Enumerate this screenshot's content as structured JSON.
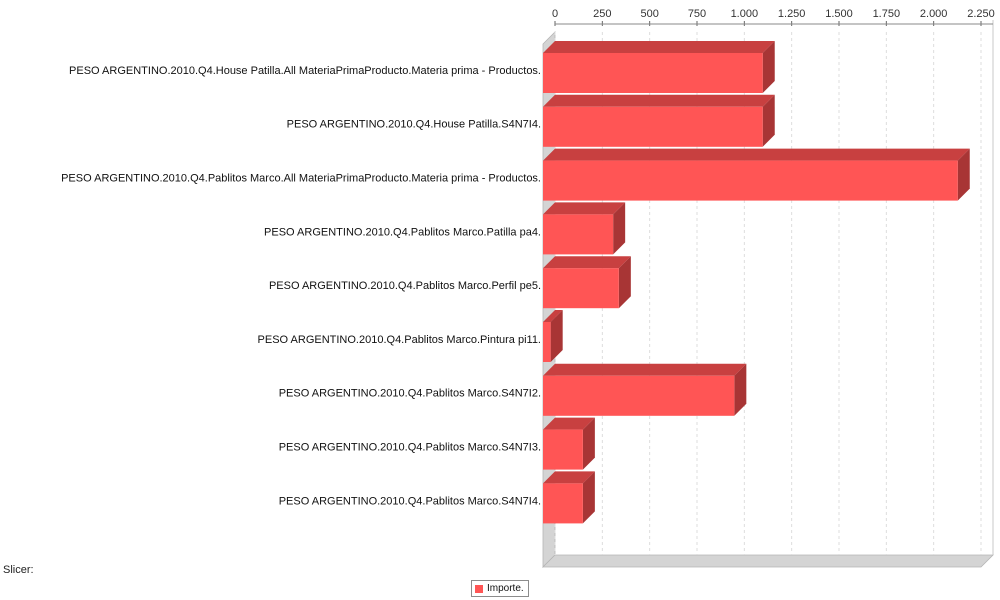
{
  "slicer_label": "Slicer:",
  "legend": {
    "label": "Importe.",
    "color": "#ff5555"
  },
  "colors": {
    "bar_front": "#ff5555",
    "bar_top": "#c84040",
    "bar_side": "#a83535",
    "wall": "#d4d4d4",
    "grid": "#dddddd"
  },
  "chart_data": {
    "type": "bar",
    "orientation": "horizontal",
    "style": "3d",
    "title": "",
    "xlabel": "",
    "ylabel": "",
    "xlim": [
      0,
      2250
    ],
    "ticks": [
      0,
      250,
      500,
      750,
      1000,
      1250,
      1500,
      1750,
      2000,
      2250
    ],
    "tick_labels": [
      "0",
      "250",
      "500",
      "750",
      "1.000",
      "1.250",
      "1.500",
      "1.750",
      "2.000",
      "2.250"
    ],
    "axis_position": "top",
    "grid": true,
    "legend_position": "bottom-center",
    "categories": [
      "PESO ARGENTINO.2010.Q4.House Patilla.All MateriaPrimaProducto.Materia prima - Productos.",
      "PESO ARGENTINO.2010.Q4.House Patilla.S4N7I4.",
      "PESO ARGENTINO.2010.Q4.Pablitos Marco.All MateriaPrimaProducto.Materia prima - Productos.",
      "PESO ARGENTINO.2010.Q4.Pablitos Marco.Patilla pa4.",
      "PESO ARGENTINO.2010.Q4.Pablitos Marco.Perfil pe5.",
      "PESO ARGENTINO.2010.Q4.Pablitos Marco.Pintura pi11.",
      "PESO ARGENTINO.2010.Q4.Pablitos Marco.S4N7I2.",
      "PESO ARGENTINO.2010.Q4.Pablitos Marco.S4N7I3.",
      "PESO ARGENTINO.2010.Q4.Pablitos Marco.S4N7I4."
    ],
    "series": [
      {
        "name": "Importe.",
        "values": [
          1150,
          1150,
          2180,
          360,
          390,
          30,
          1000,
          200,
          200
        ]
      }
    ]
  }
}
